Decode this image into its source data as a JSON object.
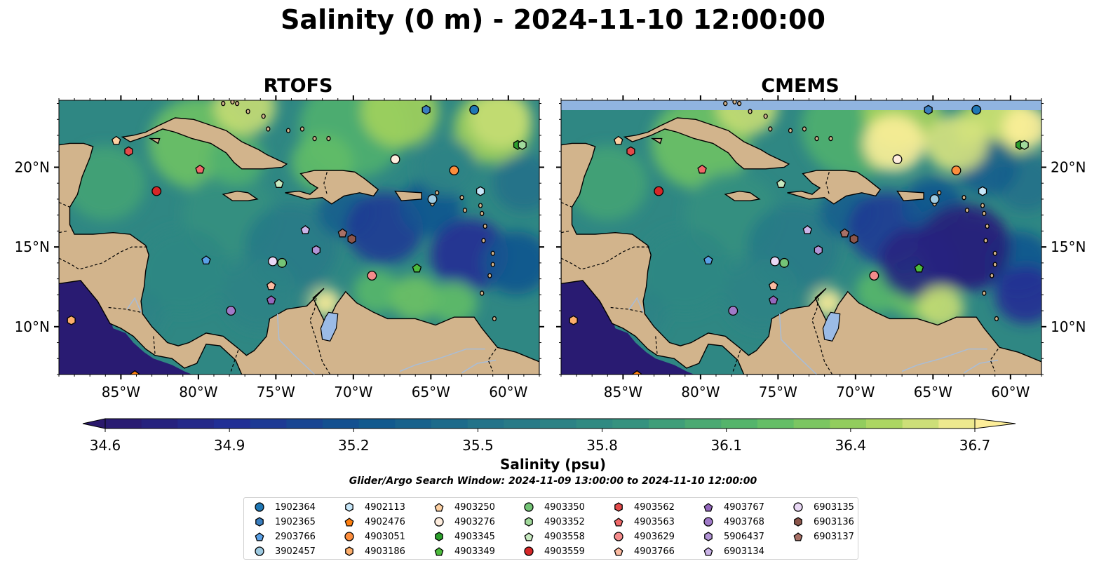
{
  "title": "Salinity (0 m) - 2024-11-10 12:00:00",
  "panels": [
    {
      "title": "RTOFS",
      "name": "rtofs"
    },
    {
      "title": "CMEMS",
      "name": "cmems"
    }
  ],
  "colorbar": {
    "label": "Salinity (psu)",
    "vmin": 34.6,
    "vmax": 36.7,
    "levels": 24,
    "ticks": [
      "34.6",
      "34.9",
      "35.2",
      "35.5",
      "35.8",
      "36.1",
      "36.4",
      "36.7"
    ],
    "extend": "both",
    "colormap": "haline"
  },
  "search_window": "Glider/Argo Search Window: 2024-11-09 13:00:00 to 2024-11-10 12:00:00",
  "chart_data": {
    "type": "scatter",
    "map_extent": {
      "lon": [
        -89,
        -58
      ],
      "lat": [
        7,
        24.2
      ]
    },
    "xticks": [
      "85°W",
      "80°W",
      "75°W",
      "70°W",
      "65°W",
      "60°W"
    ],
    "xtick_values": [
      -85,
      -80,
      -75,
      -70,
      -65,
      -60
    ],
    "yticks": [
      "10°N",
      "15°N",
      "20°N"
    ],
    "ytick_values": [
      10,
      15,
      20
    ],
    "legend_placement": "bottom-center",
    "series": [
      {
        "name": "1902364",
        "marker": "circle",
        "color": "#1f77b4",
        "lon": -62.2,
        "lat": 23.6
      },
      {
        "name": "1902365",
        "marker": "hexagon",
        "color": "#3a7ebf",
        "lon": -65.3,
        "lat": 23.6
      },
      {
        "name": "2903766",
        "marker": "pentagon",
        "color": "#5aa0e6",
        "lon": -79.5,
        "lat": 14.2
      },
      {
        "name": "3902457",
        "marker": "circle",
        "color": "#9ecae1",
        "lon": -64.9,
        "lat": 18.0
      },
      {
        "name": "4902113",
        "marker": "hexagon",
        "color": "#c6e6f8",
        "lon": -61.8,
        "lat": 18.5
      },
      {
        "name": "4902476",
        "marker": "pentagon",
        "color": "#ff7f0e",
        "lon": -84.1,
        "lat": 7.0
      },
      {
        "name": "4903051",
        "marker": "circle",
        "color": "#fd8d3c",
        "lon": -63.5,
        "lat": 19.8
      },
      {
        "name": "4903186",
        "marker": "hexagon",
        "color": "#fdae6b",
        "lon": -88.2,
        "lat": 10.4
      },
      {
        "name": "4903250",
        "marker": "pentagon",
        "color": "#fdd0a2",
        "lon": -85.3,
        "lat": 21.7
      },
      {
        "name": "4903276",
        "marker": "circle",
        "color": "#feedde",
        "lon": -67.3,
        "lat": 20.5
      },
      {
        "name": "4903345",
        "marker": "hexagon",
        "color": "#2ca02c",
        "lon": -59.4,
        "lat": 21.4
      },
      {
        "name": "4903349",
        "marker": "pentagon",
        "color": "#4cbb3c",
        "lon": -65.9,
        "lat": 13.7
      },
      {
        "name": "4903350",
        "marker": "circle",
        "color": "#74c476",
        "lon": -74.6,
        "lat": 14.0
      },
      {
        "name": "4903352",
        "marker": "hexagon",
        "color": "#a1d99b",
        "lon": -59.1,
        "lat": 21.4
      },
      {
        "name": "4903558",
        "marker": "pentagon",
        "color": "#c7e9c0",
        "lon": -74.8,
        "lat": 19.0
      },
      {
        "name": "4903559",
        "marker": "circle",
        "color": "#d62728",
        "lon": -82.7,
        "lat": 18.5
      },
      {
        "name": "4903562",
        "marker": "hexagon",
        "color": "#e34a4a",
        "lon": -84.5,
        "lat": 21.0
      },
      {
        "name": "4903563",
        "marker": "pentagon",
        "color": "#f06868",
        "lon": -79.9,
        "lat": 19.9
      },
      {
        "name": "4903629",
        "marker": "circle",
        "color": "#f48b8b",
        "lon": -68.8,
        "lat": 13.2
      },
      {
        "name": "4903766",
        "marker": "pentagon",
        "color": "#fcbba1",
        "lon": -75.3,
        "lat": 12.6
      },
      {
        "name": "4903767",
        "marker": "pentagon",
        "color": "#9467bd",
        "lon": -75.3,
        "lat": 11.7
      },
      {
        "name": "4903768",
        "marker": "circle",
        "color": "#a07ac8",
        "lon": -77.9,
        "lat": 11.0
      },
      {
        "name": "5906437",
        "marker": "hexagon",
        "color": "#b294d6",
        "lon": -72.4,
        "lat": 14.8
      },
      {
        "name": "6903134",
        "marker": "pentagon",
        "color": "#cbb4e8",
        "lon": -73.1,
        "lat": 16.1
      },
      {
        "name": "6903135",
        "marker": "circle",
        "color": "#e9d8f5",
        "lon": -75.2,
        "lat": 14.1
      },
      {
        "name": "6903136",
        "marker": "hexagon",
        "color": "#8c564b",
        "lon": -70.1,
        "lat": 15.5
      },
      {
        "name": "6903137",
        "marker": "pentagon",
        "color": "#a87066",
        "lon": -70.7,
        "lat": 15.9
      }
    ]
  }
}
